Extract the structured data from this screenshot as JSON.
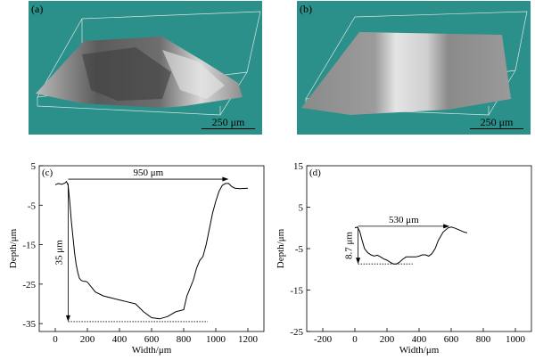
{
  "panels": {
    "a": {
      "label": "(a)",
      "scale": "250 μm"
    },
    "b": {
      "label": "(b)",
      "scale": "250 μm"
    }
  },
  "chart_data": [
    {
      "type": "line",
      "panel_label": "(c)",
      "xlabel": "Width/μm",
      "ylabel": "Depth/μm",
      "xlim": [
        -100,
        1300
      ],
      "ylim": [
        -37,
        5
      ],
      "xticks": [
        0,
        200,
        400,
        600,
        800,
        1000,
        1200
      ],
      "yticks": [
        5,
        -5,
        -15,
        -25,
        -35
      ],
      "series": [
        {
          "x": [
            0,
            20,
            40,
            60,
            70,
            80,
            90,
            100,
            110,
            120,
            130,
            140,
            150,
            160,
            170,
            180,
            190,
            200,
            250,
            300,
            350,
            400,
            450,
            500,
            550,
            600,
            650,
            700,
            750,
            800,
            820,
            840,
            860,
            880,
            900,
            920,
            940,
            960,
            980,
            1000,
            1020,
            1040,
            1060,
            1080,
            1100,
            1120,
            1150,
            1200
          ],
          "y": [
            0.2,
            0.5,
            0.3,
            0.6,
            1.0,
            0,
            -4,
            -9,
            -13,
            -17,
            -20,
            -22,
            -23.5,
            -24,
            -24.2,
            -24.3,
            -24.3,
            -24.5,
            -27,
            -28,
            -28.5,
            -29,
            -29.5,
            -30,
            -32,
            -33.5,
            -33.8,
            -33.2,
            -32,
            -31.5,
            -28,
            -26,
            -24,
            -21,
            -19,
            -18,
            -15,
            -11,
            -7,
            -4,
            -1.5,
            0,
            0.5,
            0.5,
            -0.3,
            -0.7,
            -0.8,
            -0.7
          ]
        }
      ],
      "annotations": [
        {
          "text": "950 μm",
          "kind": "width",
          "from": [
            80,
            1.6
          ],
          "to": [
            1080,
            1.6
          ]
        },
        {
          "text": "35 μm",
          "kind": "depth",
          "x": 80,
          "from": 0.5,
          "to": -34.5
        }
      ],
      "dotted_level": {
        "y": -34.5,
        "x": [
          80,
          950
        ]
      }
    },
    {
      "type": "line",
      "panel_label": "(d)",
      "xlabel": "Width/μm",
      "ylabel": "Depth/μm",
      "xlim": [
        -300,
        1100
      ],
      "ylim": [
        -25,
        15
      ],
      "xticks": [
        -200,
        0,
        200,
        400,
        600,
        800,
        1000
      ],
      "yticks": [
        15,
        5,
        -5,
        -15,
        -25
      ],
      "series": [
        {
          "x": [
            0,
            15,
            30,
            45,
            60,
            80,
            100,
            120,
            140,
            160,
            180,
            200,
            220,
            240,
            260,
            280,
            300,
            320,
            350,
            380,
            400,
            420,
            440,
            460,
            480,
            500,
            520,
            550,
            580,
            600,
            620,
            650,
            680,
            700
          ],
          "y": [
            0,
            0.2,
            -0.8,
            -3.0,
            -5.0,
            -6.0,
            -6.5,
            -6.8,
            -6.6,
            -7.0,
            -7.5,
            -7.8,
            -8.3,
            -8.7,
            -8.7,
            -8.2,
            -7.5,
            -7.0,
            -7.0,
            -7.0,
            -6.8,
            -6.5,
            -6.5,
            -6.8,
            -6.2,
            -5.0,
            -3.0,
            -1.0,
            0,
            0.2,
            0,
            -0.5,
            -1.0,
            -1.2
          ]
        }
      ],
      "annotations": [
        {
          "text": "530 μm",
          "kind": "width",
          "from": [
            20,
            0.4
          ],
          "to": [
            590,
            0.4
          ]
        },
        {
          "text": "8.7 μm",
          "kind": "depth",
          "x": 20,
          "from": 0.2,
          "to": -8.7
        }
      ],
      "dotted_level": {
        "y": -8.7,
        "x": [
          20,
          360
        ]
      }
    }
  ]
}
